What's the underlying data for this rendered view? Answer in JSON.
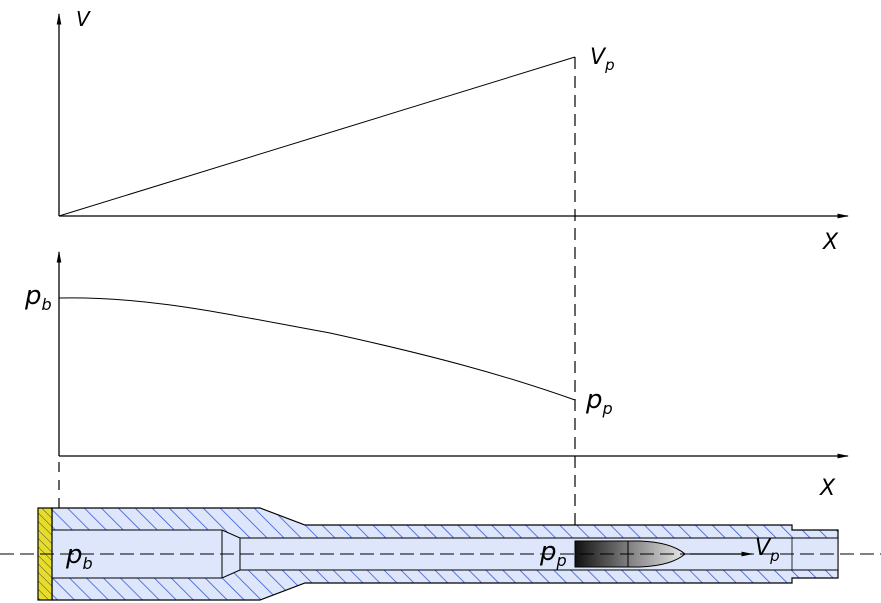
{
  "velocity_graph": {
    "y_axis_label": "V",
    "x_axis_label": "X",
    "end_label_main": "V",
    "end_label_sub": "p"
  },
  "pressure_graph": {
    "start_label_main": "p",
    "start_label_sub": "b",
    "end_label_main": "p",
    "end_label_sub": "p",
    "x_axis_label": "X"
  },
  "barrel": {
    "breech_pressure_main": "p",
    "breech_pressure_sub": "b",
    "projectile_pressure_main": "p",
    "projectile_pressure_sub": "p",
    "velocity_main": "V",
    "velocity_sub": "p"
  },
  "colors": {
    "bore_fill": "#dde6fa",
    "hatch": "#3a5bd9",
    "breech_plug": "#e6dc2a",
    "line": "#000000"
  }
}
